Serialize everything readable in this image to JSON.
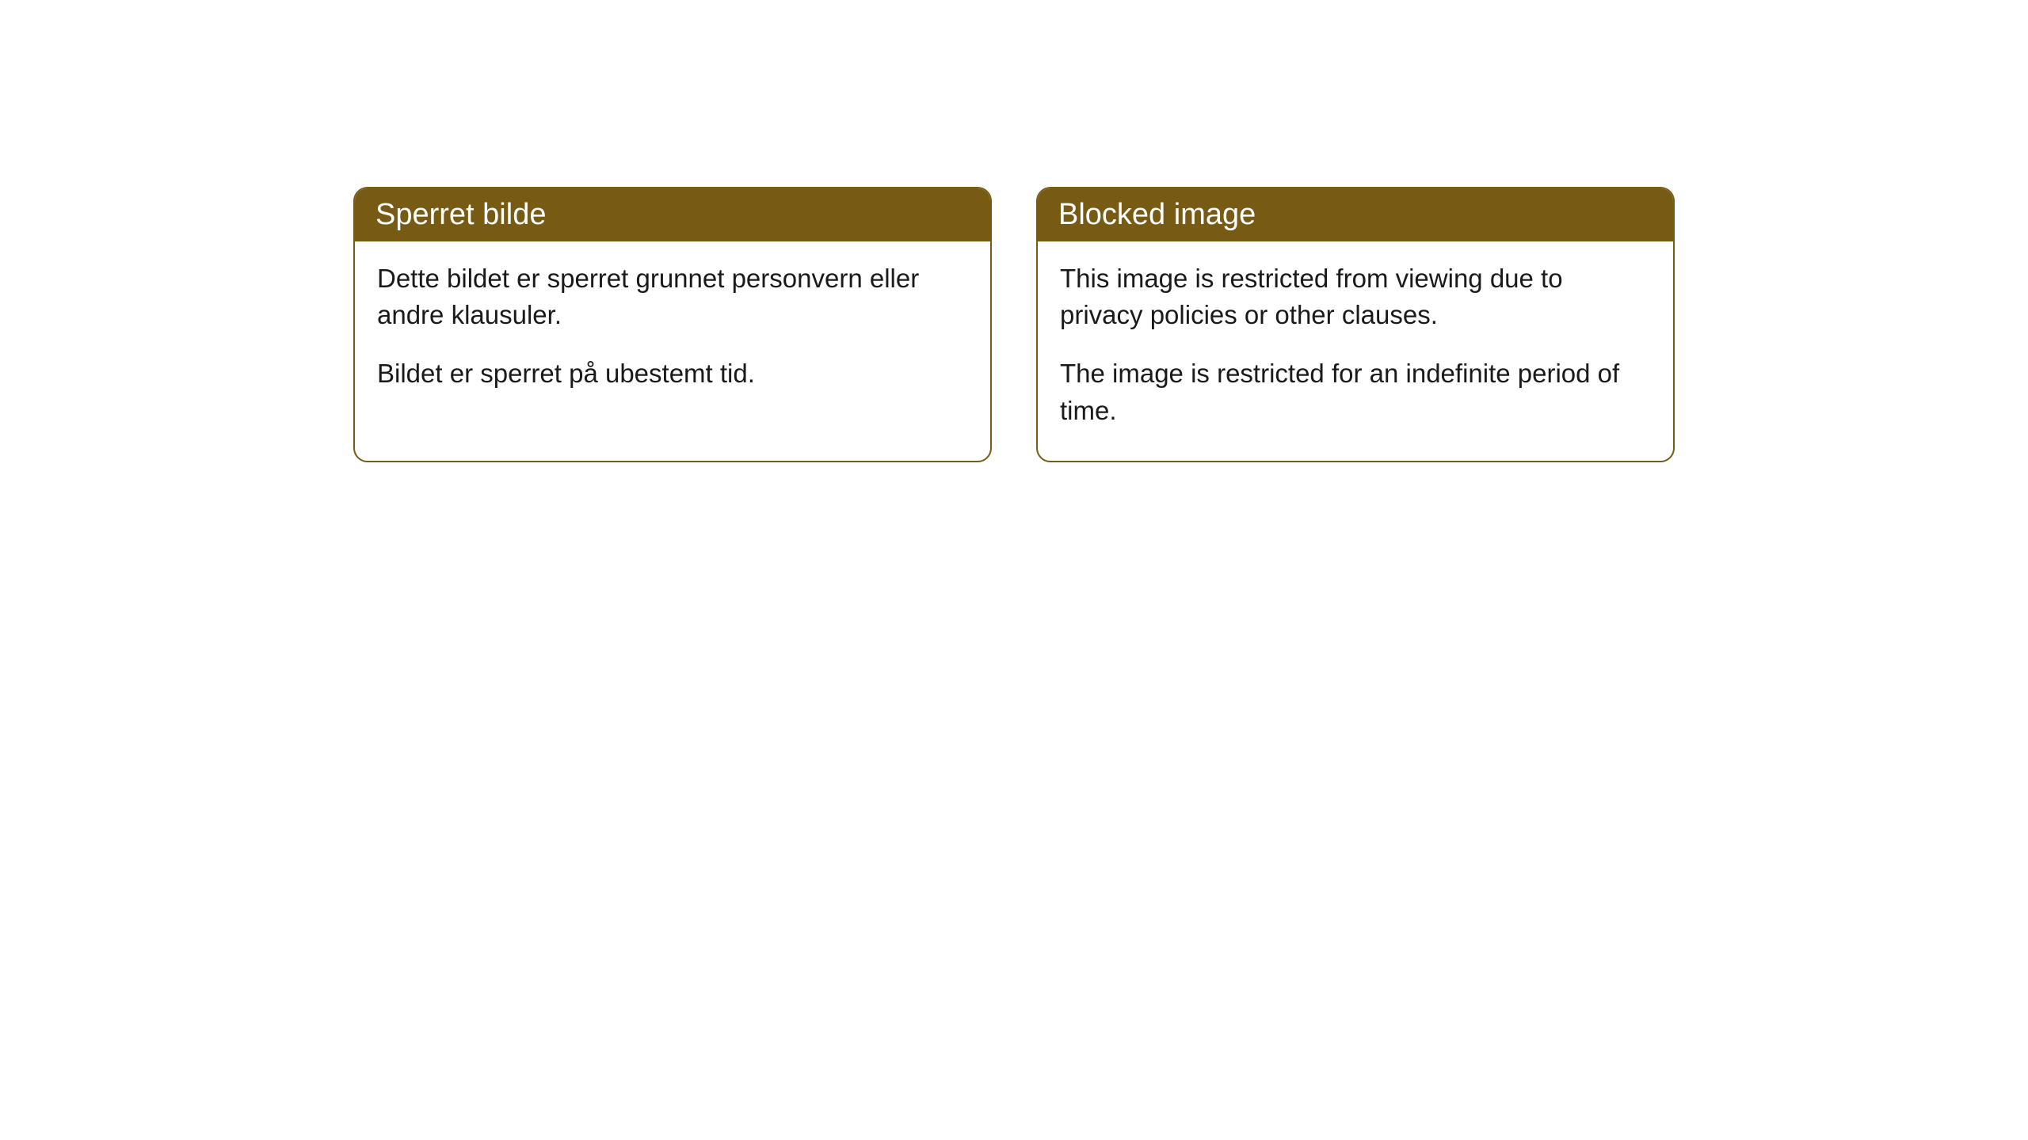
{
  "cards": [
    {
      "title": "Sperret bilde",
      "paragraph1": "Dette bildet er sperret grunnet personvern eller andre klausuler.",
      "paragraph2": "Bildet er sperret på ubestemt tid."
    },
    {
      "title": "Blocked image",
      "paragraph1": "This image is restricted from viewing due to privacy policies or other clauses.",
      "paragraph2": "The image is restricted for an indefinite period of time."
    }
  ],
  "style": {
    "header_bg_color": "#775a13",
    "header_text_color": "#ffffff",
    "border_color": "#775a13",
    "body_bg_color": "#ffffff",
    "body_text_color": "#1a1a1a",
    "border_radius": 18,
    "title_fontsize": 38,
    "body_fontsize": 33
  }
}
